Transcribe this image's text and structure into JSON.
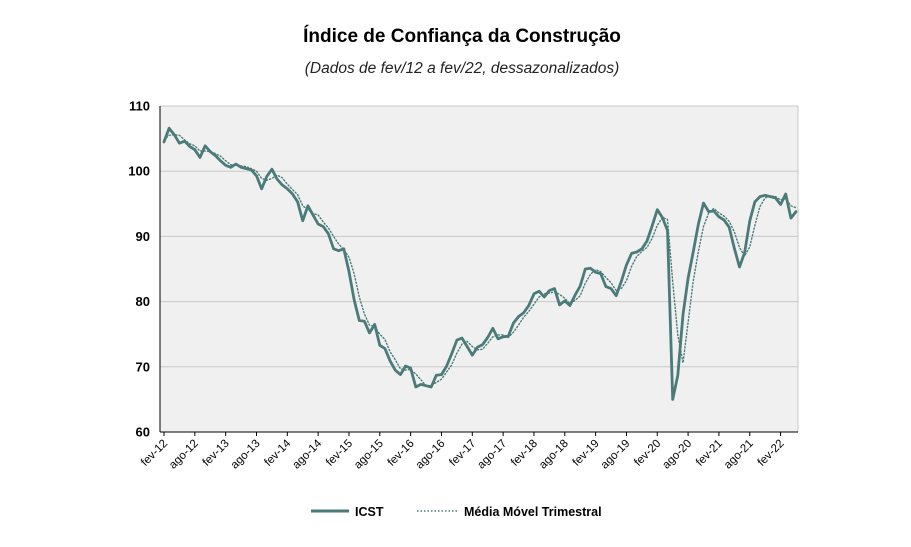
{
  "chart_data": {
    "type": "line",
    "title": "Índice de Confiança da Construção",
    "subtitle": "(Dados de fev/12 a fev/22, dessazonalizados)",
    "xlabel": "",
    "ylabel": "",
    "ylim": [
      60,
      110
    ],
    "yticks": [
      60,
      70,
      80,
      90,
      100,
      110
    ],
    "grid": true,
    "legend_position": "bottom",
    "start": "fev-12",
    "x_tick_labels": [
      "fev-12",
      "ago-12",
      "fev-13",
      "ago-13",
      "fev-14",
      "ago-14",
      "fev-15",
      "ago-15",
      "fev-16",
      "ago-16",
      "fev-17",
      "ago-17",
      "fev-18",
      "ago-18",
      "fev-19",
      "ago-19",
      "fev-20",
      "ago-20",
      "fev-21",
      "ago-21",
      "fev-22"
    ],
    "series": [
      {
        "name": "ICST",
        "style": "solid",
        "color": "#4a7b78",
        "values": [
          104.5,
          106.6,
          105.6,
          104.3,
          104.6,
          103.8,
          103.3,
          102.1,
          103.9,
          103.0,
          102.4,
          101.6,
          100.9,
          100.6,
          101.1,
          100.6,
          100.4,
          100.2,
          99.3,
          97.3,
          99.2,
          100.3,
          98.8,
          97.9,
          97.3,
          96.5,
          95.3,
          92.4,
          94.7,
          93.3,
          91.9,
          91.5,
          90.4,
          88.1,
          87.8,
          88.1,
          84.6,
          80.3,
          77.1,
          77.0,
          75.2,
          76.5,
          73.3,
          72.8,
          70.9,
          69.5,
          68.8,
          70.1,
          69.8,
          66.9,
          67.3,
          67.1,
          66.9,
          68.7,
          68.8,
          70.1,
          72.0,
          74.1,
          74.4,
          73.1,
          71.8,
          73.0,
          73.4,
          74.5,
          75.9,
          74.3,
          74.6,
          74.7,
          76.7,
          77.7,
          78.3,
          79.4,
          81.2,
          81.6,
          80.7,
          81.7,
          82.0,
          79.5,
          80.1,
          79.4,
          81.0,
          82.4,
          85.0,
          85.1,
          84.5,
          84.3,
          82.3,
          82.0,
          80.9,
          83.1,
          85.6,
          87.4,
          87.6,
          88.1,
          89.3,
          91.6,
          94.1,
          92.9,
          90.9,
          65.0,
          68.7,
          78.0,
          83.6,
          87.6,
          91.9,
          95.1,
          93.8,
          93.9,
          93.0,
          92.5,
          91.4,
          88.2,
          85.3,
          87.5,
          92.4,
          95.3,
          96.1,
          96.3,
          96.1,
          95.9,
          94.9,
          96.5,
          92.8,
          93.8
        ]
      },
      {
        "name": "Média Móvel Trimestral",
        "style": "dotted",
        "color": "#4a7b78",
        "values": [
          104.8,
          105.5,
          105.6,
          105.5,
          104.8,
          104.2,
          103.9,
          103.1,
          103.1,
          103.0,
          102.7,
          102.3,
          101.6,
          101.0,
          100.9,
          100.8,
          100.7,
          100.4,
          100.0,
          98.9,
          98.6,
          98.9,
          99.4,
          99.0,
          98.0,
          97.2,
          96.4,
          94.7,
          94.1,
          93.5,
          93.3,
          92.2,
          91.3,
          90.0,
          88.8,
          88.0,
          86.8,
          84.3,
          80.7,
          78.1,
          76.4,
          76.2,
          75.0,
          74.2,
          72.3,
          71.1,
          69.7,
          69.5,
          69.6,
          68.9,
          68.0,
          67.1,
          67.1,
          67.6,
          68.1,
          69.2,
          70.3,
          72.1,
          73.5,
          73.9,
          73.1,
          72.6,
          72.7,
          73.6,
          74.6,
          74.9,
          74.9,
          74.5,
          75.3,
          76.4,
          77.6,
          78.5,
          79.6,
          80.7,
          81.2,
          81.3,
          81.5,
          81.1,
          80.5,
          79.7,
          80.2,
          80.9,
          82.8,
          84.2,
          84.9,
          84.6,
          83.7,
          82.9,
          81.7,
          82.0,
          83.2,
          85.4,
          86.9,
          87.7,
          88.3,
          89.7,
          91.7,
          92.9,
          92.6,
          83.0,
          74.9,
          70.6,
          76.8,
          83.1,
          87.7,
          91.5,
          93.6,
          94.3,
          93.6,
          93.1,
          92.3,
          90.7,
          88.3,
          87.0,
          88.4,
          91.7,
          94.6,
          95.9,
          96.2,
          96.1,
          95.6,
          95.8,
          94.7,
          94.4
        ]
      }
    ]
  }
}
